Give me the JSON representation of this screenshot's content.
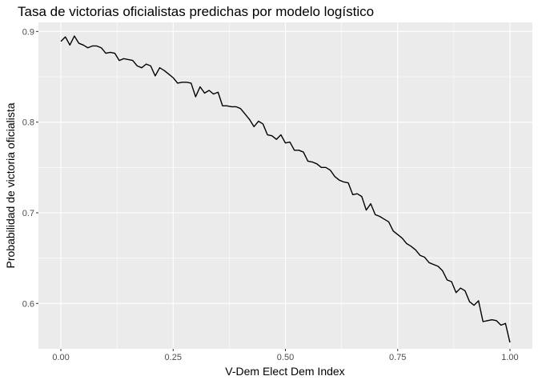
{
  "chart_data": {
    "type": "line",
    "title": "Tasa de victorias oficialistas predichas por modelo logístico",
    "xlabel": "V-Dem Elect Dem Index",
    "ylabel": "Probabilidad de victoria oficialista",
    "xlim": [
      -0.05,
      1.05
    ],
    "ylim": [
      0.55,
      0.91
    ],
    "xticks": [
      0.0,
      0.25,
      0.5,
      0.75,
      1.0
    ],
    "xtick_labels": [
      "0.00",
      "0.25",
      "0.50",
      "0.75",
      "1.00"
    ],
    "yticks": [
      0.6,
      0.7,
      0.8,
      0.9
    ],
    "ytick_labels": [
      "0.6",
      "0.7",
      "0.8",
      "0.9"
    ],
    "grid": true,
    "colors": {
      "panel": "#ebebeb",
      "grid": "#ffffff",
      "line": "#000000"
    },
    "series": [
      {
        "x": [
          0.0,
          0.01,
          0.02,
          0.03,
          0.04,
          0.05,
          0.06,
          0.07,
          0.08,
          0.09,
          0.1,
          0.11,
          0.12,
          0.13,
          0.14,
          0.15,
          0.16,
          0.17,
          0.18,
          0.19,
          0.2,
          0.21,
          0.22,
          0.23,
          0.24,
          0.25,
          0.26,
          0.27,
          0.28,
          0.29,
          0.3,
          0.31,
          0.32,
          0.33,
          0.34,
          0.35,
          0.36,
          0.37,
          0.38,
          0.39,
          0.4,
          0.41,
          0.42,
          0.43,
          0.44,
          0.45,
          0.46,
          0.47,
          0.48,
          0.49,
          0.5,
          0.51,
          0.52,
          0.53,
          0.54,
          0.55,
          0.56,
          0.57,
          0.58,
          0.59,
          0.6,
          0.61,
          0.62,
          0.63,
          0.64,
          0.65,
          0.66,
          0.67,
          0.68,
          0.69,
          0.7,
          0.71,
          0.72,
          0.73,
          0.74,
          0.75,
          0.76,
          0.77,
          0.78,
          0.79,
          0.8,
          0.81,
          0.82,
          0.83,
          0.84,
          0.85,
          0.86,
          0.87,
          0.88,
          0.89,
          0.9,
          0.91,
          0.92,
          0.93,
          0.94,
          0.95,
          0.96,
          0.97,
          0.98,
          0.99,
          1.0
        ],
        "values": [
          0.889,
          0.894,
          0.885,
          0.895,
          0.887,
          0.885,
          0.882,
          0.884,
          0.884,
          0.882,
          0.876,
          0.877,
          0.876,
          0.868,
          0.87,
          0.869,
          0.868,
          0.862,
          0.86,
          0.864,
          0.862,
          0.851,
          0.86,
          0.857,
          0.853,
          0.849,
          0.843,
          0.844,
          0.844,
          0.843,
          0.828,
          0.839,
          0.832,
          0.835,
          0.831,
          0.833,
          0.818,
          0.818,
          0.817,
          0.817,
          0.815,
          0.809,
          0.803,
          0.795,
          0.801,
          0.798,
          0.786,
          0.785,
          0.781,
          0.786,
          0.777,
          0.778,
          0.769,
          0.769,
          0.767,
          0.757,
          0.756,
          0.754,
          0.75,
          0.75,
          0.747,
          0.74,
          0.736,
          0.734,
          0.733,
          0.72,
          0.721,
          0.718,
          0.703,
          0.71,
          0.698,
          0.696,
          0.693,
          0.69,
          0.68,
          0.676,
          0.672,
          0.666,
          0.663,
          0.659,
          0.653,
          0.651,
          0.645,
          0.643,
          0.641,
          0.636,
          0.626,
          0.624,
          0.612,
          0.617,
          0.614,
          0.602,
          0.598,
          0.603,
          0.58,
          0.581,
          0.582,
          0.581,
          0.576,
          0.578,
          0.557
        ]
      }
    ]
  }
}
